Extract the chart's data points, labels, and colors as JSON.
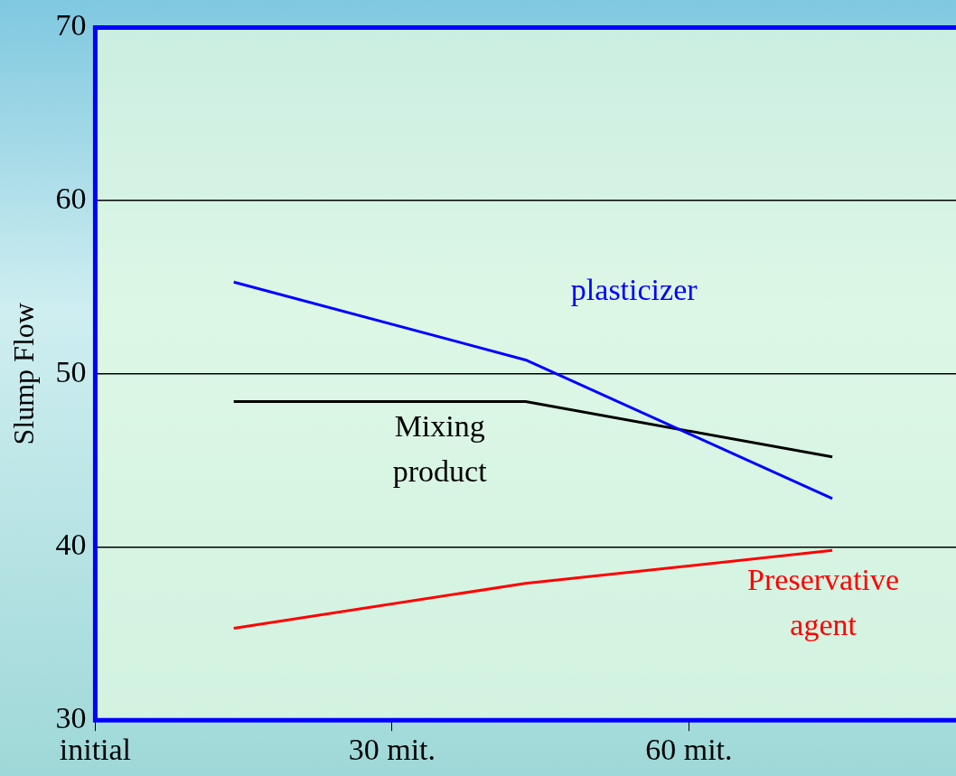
{
  "chart_data": {
    "type": "line",
    "ylabel": "Slump Flow",
    "x": [
      14,
      43.5,
      74.5
    ],
    "xlim": [
      0,
      87
    ],
    "xticks": [
      {
        "value": 0,
        "label": "initial"
      },
      {
        "value": 30,
        "label": "30 mit."
      },
      {
        "value": 60,
        "label": "60 mit."
      }
    ],
    "ylim": [
      30,
      70
    ],
    "yticks": [
      30,
      40,
      50,
      60,
      70
    ],
    "series": [
      {
        "name": "plasticizer",
        "color": "#0000ff",
        "values": [
          55.3,
          50.8,
          42.8
        ]
      },
      {
        "name": "Mixing product",
        "color": "#000000",
        "values": [
          48.4,
          48.4,
          45.2
        ]
      },
      {
        "name": "Preservative agent",
        "color": "#ff0000",
        "values": [
          35.3,
          37.9,
          39.8
        ]
      }
    ],
    "grid": "y",
    "legend": false,
    "marker": "none",
    "line_style": "solid"
  }
}
